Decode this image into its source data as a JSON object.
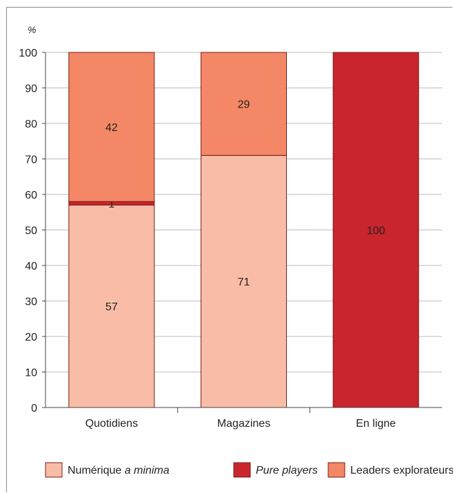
{
  "chart_data": {
    "type": "bar",
    "stacked": true,
    "unit": "%",
    "categories": [
      "Quotidiens",
      "Magazines",
      "En ligne"
    ],
    "series": [
      {
        "name": "Numérique ",
        "name_em": "a minima",
        "values": [
          57,
          71,
          0
        ],
        "color": "#f9bca6"
      },
      {
        "name": "",
        "name_em": "Pure players",
        "values": [
          1,
          0,
          100
        ],
        "color": "#c9252d"
      },
      {
        "name": "Leaders explorateurs",
        "name_em": "",
        "values": [
          42,
          29,
          0
        ],
        "color": "#f48766"
      }
    ],
    "ylim": [
      0,
      100
    ],
    "yticks": [
      0,
      10,
      20,
      30,
      40,
      50,
      60,
      70,
      80,
      90,
      100
    ],
    "grid": true,
    "legend_position": "bottom"
  }
}
